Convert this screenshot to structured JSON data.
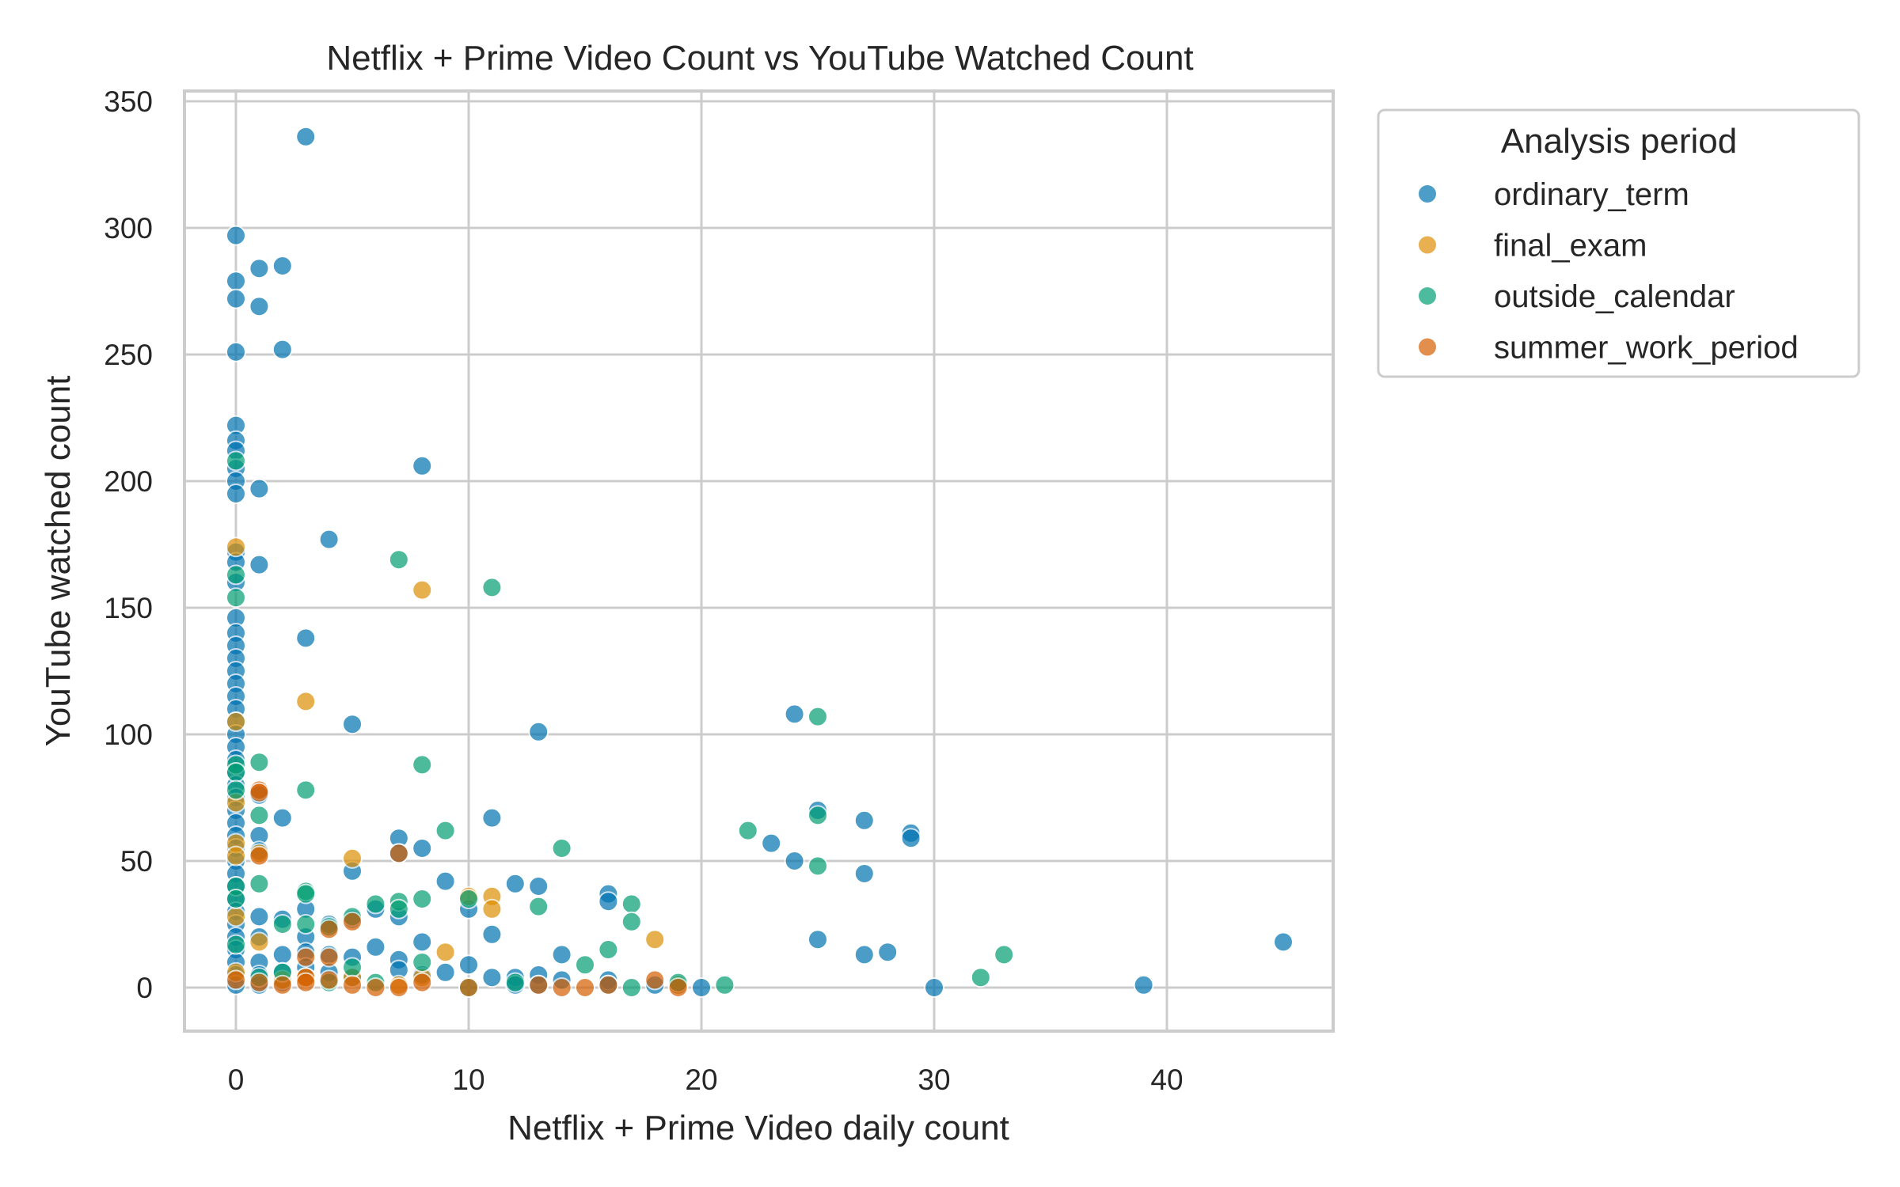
{
  "chart_data": {
    "type": "scatter",
    "title": "Netflix + Prime Video Count vs YouTube Watched Count",
    "xlabel": "Netflix + Prime Video daily count",
    "ylabel": "YouTube watched count",
    "xlim": [
      -2.3,
      47.4
    ],
    "ylim": [
      -17,
      353
    ],
    "xticks": [
      0,
      10,
      20,
      30,
      40
    ],
    "yticks": [
      0,
      50,
      100,
      150,
      200,
      250,
      300,
      350
    ],
    "grid": true,
    "legend": {
      "title": "Analysis period",
      "position": "outside upper right",
      "entries": [
        "ordinary_term",
        "final_exam",
        "outside_calendar",
        "summer_work_period"
      ]
    },
    "colors": {
      "ordinary_term": "#0173b2",
      "final_exam": "#de8f05",
      "outside_calendar": "#029e73",
      "summer_work_period": "#d55e00"
    },
    "series": [
      {
        "name": "ordinary_term",
        "points": [
          [
            3,
            336
          ],
          [
            0,
            297
          ],
          [
            0,
            279
          ],
          [
            0,
            272
          ],
          [
            0,
            251
          ],
          [
            1,
            284
          ],
          [
            2,
            285
          ],
          [
            1,
            269
          ],
          [
            2,
            252
          ],
          [
            0,
            222
          ],
          [
            0,
            216
          ],
          [
            0,
            212
          ],
          [
            0,
            205
          ],
          [
            0,
            200
          ],
          [
            0,
            195
          ],
          [
            1,
            197
          ],
          [
            8,
            206
          ],
          [
            4,
            177
          ],
          [
            1,
            167
          ],
          [
            0,
            172
          ],
          [
            0,
            168
          ],
          [
            0,
            160
          ],
          [
            0,
            146
          ],
          [
            0,
            140
          ],
          [
            0,
            135
          ],
          [
            0,
            130
          ],
          [
            0,
            125
          ],
          [
            0,
            120
          ],
          [
            0,
            115
          ],
          [
            0,
            110
          ],
          [
            0,
            105
          ],
          [
            0,
            100
          ],
          [
            0,
            95
          ],
          [
            0,
            90
          ],
          [
            0,
            85
          ],
          [
            0,
            80
          ],
          [
            0,
            75
          ],
          [
            0,
            70
          ],
          [
            0,
            65
          ],
          [
            0,
            60
          ],
          [
            0,
            55
          ],
          [
            0,
            50
          ],
          [
            0,
            45
          ],
          [
            0,
            40
          ],
          [
            0,
            35
          ],
          [
            0,
            30
          ],
          [
            0,
            25
          ],
          [
            0,
            20
          ],
          [
            0,
            15
          ],
          [
            0,
            10
          ],
          [
            0,
            5
          ],
          [
            0,
            1
          ],
          [
            3,
            138
          ],
          [
            5,
            104
          ],
          [
            13,
            101
          ],
          [
            2,
            67
          ],
          [
            1,
            76
          ],
          [
            1,
            60
          ],
          [
            1,
            54
          ],
          [
            1,
            28
          ],
          [
            1,
            20
          ],
          [
            1,
            10
          ],
          [
            1,
            5
          ],
          [
            1,
            1
          ],
          [
            2,
            27
          ],
          [
            2,
            13
          ],
          [
            2,
            6
          ],
          [
            2,
            2
          ],
          [
            3,
            31
          ],
          [
            3,
            20
          ],
          [
            3,
            14
          ],
          [
            3,
            8
          ],
          [
            4,
            25
          ],
          [
            4,
            13
          ],
          [
            4,
            6
          ],
          [
            5,
            46
          ],
          [
            5,
            27
          ],
          [
            5,
            12
          ],
          [
            5,
            4
          ],
          [
            6,
            31
          ],
          [
            6,
            16
          ],
          [
            7,
            59
          ],
          [
            7,
            53
          ],
          [
            7,
            28
          ],
          [
            7,
            11
          ],
          [
            7,
            7
          ],
          [
            8,
            55
          ],
          [
            8,
            18
          ],
          [
            8,
            5
          ],
          [
            9,
            42
          ],
          [
            9,
            6
          ],
          [
            10,
            31
          ],
          [
            10,
            9
          ],
          [
            11,
            67
          ],
          [
            11,
            21
          ],
          [
            11,
            4
          ],
          [
            12,
            41
          ],
          [
            12,
            4
          ],
          [
            12,
            1
          ],
          [
            13,
            40
          ],
          [
            13,
            5
          ],
          [
            13,
            1
          ],
          [
            14,
            13
          ],
          [
            14,
            3
          ],
          [
            16,
            37
          ],
          [
            16,
            34
          ],
          [
            16,
            3
          ],
          [
            16,
            1
          ],
          [
            18,
            1
          ],
          [
            19,
            1
          ],
          [
            20,
            0
          ],
          [
            24,
            108
          ],
          [
            25,
            70
          ],
          [
            23,
            57
          ],
          [
            24,
            50
          ],
          [
            27,
            66
          ],
          [
            29,
            61
          ],
          [
            29,
            59
          ],
          [
            27,
            45
          ],
          [
            25,
            19
          ],
          [
            27,
            13
          ],
          [
            28,
            14
          ],
          [
            30,
            0
          ],
          [
            39,
            1
          ],
          [
            45,
            18
          ]
        ]
      },
      {
        "name": "final_exam",
        "points": [
          [
            0,
            174
          ],
          [
            0,
            105
          ],
          [
            0,
            73
          ],
          [
            0,
            57
          ],
          [
            0,
            52
          ],
          [
            0,
            28
          ],
          [
            0,
            6
          ],
          [
            3,
            113
          ],
          [
            8,
            157
          ],
          [
            5,
            51
          ],
          [
            1,
            53
          ],
          [
            1,
            18
          ],
          [
            2,
            3
          ],
          [
            3,
            4
          ],
          [
            9,
            14
          ],
          [
            10,
            36
          ],
          [
            11,
            36
          ],
          [
            11,
            31
          ],
          [
            18,
            19
          ],
          [
            19,
            1
          ],
          [
            8,
            4
          ],
          [
            5,
            4
          ],
          [
            7,
            1
          ]
        ]
      },
      {
        "name": "outside_calendar",
        "points": [
          [
            0,
            208
          ],
          [
            0,
            163
          ],
          [
            0,
            154
          ],
          [
            0,
            88
          ],
          [
            0,
            85
          ],
          [
            0,
            78
          ],
          [
            0,
            40
          ],
          [
            0,
            35
          ],
          [
            0,
            17
          ],
          [
            1,
            89
          ],
          [
            1,
            68
          ],
          [
            1,
            41
          ],
          [
            1,
            4
          ],
          [
            2,
            25
          ],
          [
            2,
            6
          ],
          [
            3,
            78
          ],
          [
            3,
            38
          ],
          [
            3,
            37
          ],
          [
            3,
            25
          ],
          [
            4,
            24
          ],
          [
            4,
            2
          ],
          [
            5,
            28
          ],
          [
            5,
            8
          ],
          [
            6,
            33
          ],
          [
            6,
            2
          ],
          [
            7,
            169
          ],
          [
            7,
            34
          ],
          [
            7,
            31
          ],
          [
            8,
            88
          ],
          [
            8,
            35
          ],
          [
            8,
            10
          ],
          [
            9,
            62
          ],
          [
            10,
            35
          ],
          [
            10,
            0
          ],
          [
            11,
            158
          ],
          [
            13,
            32
          ],
          [
            14,
            55
          ],
          [
            15,
            9
          ],
          [
            16,
            15
          ],
          [
            17,
            33
          ],
          [
            17,
            26
          ],
          [
            17,
            0
          ],
          [
            19,
            2
          ],
          [
            21,
            1
          ],
          [
            22,
            62
          ],
          [
            25,
            107
          ],
          [
            25,
            68
          ],
          [
            25,
            48
          ],
          [
            32,
            4
          ],
          [
            33,
            13
          ],
          [
            12,
            2
          ]
        ]
      },
      {
        "name": "summer_work_period",
        "points": [
          [
            1,
            78
          ],
          [
            1,
            77
          ],
          [
            1,
            52
          ],
          [
            1,
            2
          ],
          [
            0,
            3
          ],
          [
            2,
            1
          ],
          [
            3,
            12
          ],
          [
            3,
            4
          ],
          [
            3,
            2
          ],
          [
            4,
            23
          ],
          [
            4,
            12
          ],
          [
            4,
            3
          ],
          [
            5,
            26
          ],
          [
            5,
            1
          ],
          [
            6,
            0
          ],
          [
            7,
            53
          ],
          [
            7,
            0
          ],
          [
            8,
            2
          ],
          [
            10,
            0
          ],
          [
            14,
            0
          ],
          [
            15,
            0
          ],
          [
            16,
            1
          ],
          [
            18,
            3
          ],
          [
            19,
            0
          ],
          [
            13,
            1
          ]
        ]
      }
    ]
  }
}
